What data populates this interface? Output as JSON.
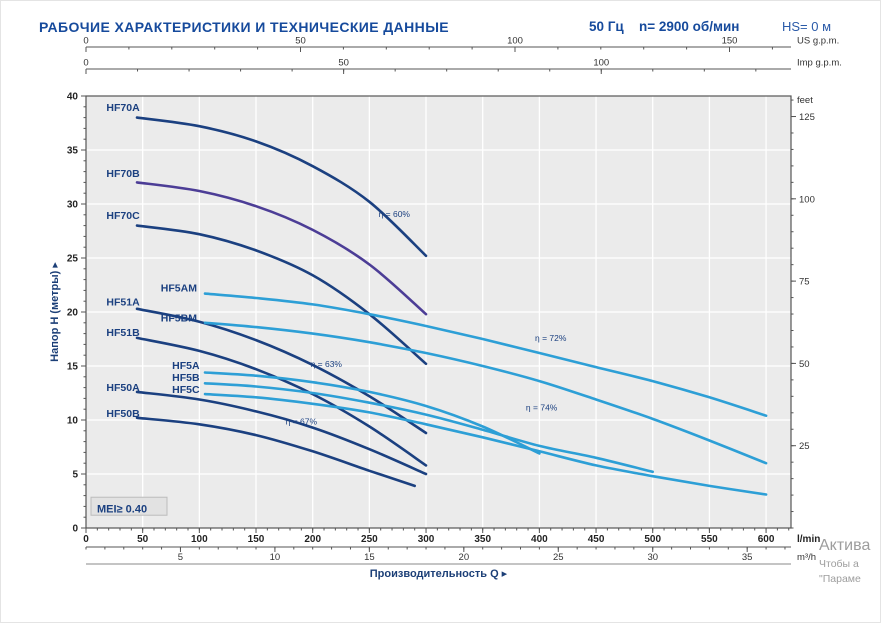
{
  "header": {
    "title": "РАБОЧИЕ ХАРАКТЕРИСТИКИ И ТЕХНИЧЕСКИЕ ДАННЫЕ",
    "frequency": "50 Гц",
    "speed": "n= 2900 об/мин",
    "suction_head": "HS= 0 м"
  },
  "watermark": {
    "line1": "Актива",
    "line2": "Чтобы а",
    "line3": "\"Параме"
  },
  "colors": {
    "title_blue": "#164a9c",
    "navy": "#1b4080",
    "purple": "#4c3d96",
    "light_blue": "#2d9fd6",
    "plot_bg": "#ebebeb",
    "grid": "#ffffff",
    "axis": "#555555",
    "watermark_gray": "#8c8c8c"
  },
  "chart_data": {
    "type": "line",
    "title": "",
    "xlabel": "Производительность Q ▸",
    "ylabel": "Напор H (метры) ▸",
    "mei_label": "MEI≥ 0.40",
    "x_axis": {
      "unit": "l/min",
      "min": 0,
      "max": 622,
      "ticks": [
        0,
        50,
        100,
        150,
        200,
        250,
        300,
        350,
        400,
        450,
        500,
        550,
        600
      ],
      "minor_step": 10
    },
    "y_axis": {
      "unit": "",
      "min": 0,
      "max": 40,
      "ticks": [
        0,
        5,
        10,
        15,
        20,
        25,
        30,
        35,
        40
      ],
      "minor_step": 1
    },
    "secondary_axes": {
      "us_gpm": {
        "label": "US g.p.m.",
        "ticks": [
          0,
          50,
          100,
          150
        ],
        "minor_step": 10,
        "lmin_per_unit": 3.785
      },
      "imp_gpm": {
        "label": "Imp g.p.m.",
        "ticks": [
          0,
          50,
          100
        ],
        "minor_step": 10,
        "lmin_per_unit": 4.546
      },
      "feet": {
        "label": "feet",
        "ticks": [
          25,
          50,
          75,
          100,
          125
        ],
        "minor_step": 5,
        "m_per_unit": 0.3048
      },
      "m3h": {
        "label": "m³/h",
        "ticks": [
          5,
          10,
          15,
          20,
          25,
          30,
          35
        ],
        "minor_step": 1,
        "lmin_per_unit": 16.667
      }
    },
    "series": [
      {
        "name": "HF70A",
        "color": "navy",
        "label_at": [
          18,
          38.6
        ],
        "points": [
          [
            45,
            38
          ],
          [
            100,
            37.2
          ],
          [
            150,
            35.8
          ],
          [
            200,
            33.5
          ],
          [
            250,
            30.2
          ],
          [
            300,
            25.2
          ]
        ]
      },
      {
        "name": "HF70B",
        "color": "purple",
        "label_at": [
          18,
          32.5
        ],
        "points": [
          [
            45,
            32
          ],
          [
            100,
            31.2
          ],
          [
            150,
            29.8
          ],
          [
            200,
            27.6
          ],
          [
            250,
            24.4
          ],
          [
            300,
            19.8
          ]
        ]
      },
      {
        "name": "HF70C",
        "color": "navy",
        "label_at": [
          18,
          28.6
        ],
        "points": [
          [
            45,
            28
          ],
          [
            100,
            27.2
          ],
          [
            150,
            25.7
          ],
          [
            200,
            23.4
          ],
          [
            250,
            19.8
          ],
          [
            300,
            15.2
          ]
        ]
      },
      {
        "name": "HF5AM",
        "color": "light_blue",
        "label_at": [
          66,
          21.9
        ],
        "points": [
          [
            105,
            21.7
          ],
          [
            150,
            21.3
          ],
          [
            200,
            20.7
          ],
          [
            250,
            19.8
          ],
          [
            300,
            18.7
          ],
          [
            350,
            17.5
          ],
          [
            400,
            16.2
          ],
          [
            450,
            14.9
          ],
          [
            500,
            13.6
          ],
          [
            550,
            12.1
          ],
          [
            600,
            10.4
          ]
        ]
      },
      {
        "name": "HF51A",
        "color": "navy",
        "label_at": [
          18,
          20.6
        ],
        "points": [
          [
            45,
            20.3
          ],
          [
            100,
            19.1
          ],
          [
            150,
            17.4
          ],
          [
            200,
            15.1
          ],
          [
            250,
            12.2
          ],
          [
            300,
            8.8
          ]
        ]
      },
      {
        "name": "HF5BM",
        "color": "light_blue",
        "label_at": [
          66,
          19.1
        ],
        "points": [
          [
            105,
            19
          ],
          [
            150,
            18.6
          ],
          [
            200,
            18
          ],
          [
            250,
            17.2
          ],
          [
            300,
            16.2
          ],
          [
            350,
            15
          ],
          [
            400,
            13.6
          ],
          [
            450,
            11.9
          ],
          [
            500,
            10.1
          ],
          [
            550,
            8.1
          ],
          [
            600,
            6
          ]
        ]
      },
      {
        "name": "HF51B",
        "color": "navy",
        "label_at": [
          18,
          17.8
        ],
        "points": [
          [
            45,
            17.6
          ],
          [
            100,
            16.4
          ],
          [
            150,
            14.7
          ],
          [
            200,
            12.4
          ],
          [
            250,
            9.4
          ],
          [
            300,
            5.8
          ]
        ]
      },
      {
        "name": "HF5A",
        "color": "light_blue",
        "label_at": [
          76,
          14.7
        ],
        "points": [
          [
            105,
            14.4
          ],
          [
            150,
            14.1
          ],
          [
            200,
            13.5
          ],
          [
            250,
            12.6
          ],
          [
            300,
            11.3
          ],
          [
            350,
            9.4
          ],
          [
            400,
            6.9
          ]
        ]
      },
      {
        "name": "HF5B",
        "color": "light_blue",
        "label_at": [
          76,
          13.6
        ],
        "points": [
          [
            105,
            13.4
          ],
          [
            150,
            13.1
          ],
          [
            200,
            12.5
          ],
          [
            250,
            11.6
          ],
          [
            300,
            10.5
          ],
          [
            350,
            9.1
          ],
          [
            400,
            7.6
          ],
          [
            450,
            6.5
          ],
          [
            500,
            5.2
          ]
        ]
      },
      {
        "name": "HF5C",
        "color": "light_blue",
        "label_at": [
          76,
          12.5
        ],
        "points": [
          [
            105,
            12.4
          ],
          [
            150,
            12.1
          ],
          [
            200,
            11.5
          ],
          [
            250,
            10.7
          ],
          [
            300,
            9.6
          ],
          [
            350,
            8.4
          ],
          [
            400,
            7.1
          ],
          [
            450,
            5.8
          ],
          [
            500,
            4.8
          ],
          [
            550,
            3.9
          ],
          [
            600,
            3.1
          ]
        ]
      },
      {
        "name": "HF50A",
        "color": "navy",
        "label_at": [
          18,
          12.7
        ],
        "points": [
          [
            45,
            12.6
          ],
          [
            100,
            11.9
          ],
          [
            150,
            10.8
          ],
          [
            200,
            9.3
          ],
          [
            250,
            7.3
          ],
          [
            300,
            5
          ]
        ]
      },
      {
        "name": "HF50B",
        "color": "navy",
        "label_at": [
          18,
          10.3
        ],
        "points": [
          [
            45,
            10.2
          ],
          [
            100,
            9.6
          ],
          [
            150,
            8.6
          ],
          [
            200,
            7.1
          ],
          [
            250,
            5.3
          ],
          [
            290,
            3.9
          ]
        ]
      }
    ],
    "efficiency_labels": [
      {
        "text": "η = 60%",
        "q": 272,
        "h": 28.8
      },
      {
        "text": "η = 72%",
        "q": 410,
        "h": 17.3
      },
      {
        "text": "η = 63%",
        "q": 212,
        "h": 14.9
      },
      {
        "text": "η = 74%",
        "q": 402,
        "h": 10.9
      },
      {
        "text": "η = 67%",
        "q": 190,
        "h": 9.6
      }
    ]
  }
}
